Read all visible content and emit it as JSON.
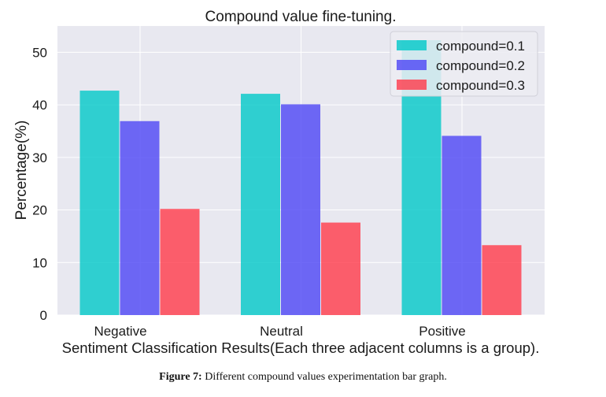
{
  "chart_data": {
    "type": "bar",
    "title": "Compound value fine-tuning.",
    "xlabel": "Sentiment Classification Results(Each three adjacent columns is a group).",
    "ylabel": "Percentage(%)",
    "categories": [
      "Negative",
      "Neutral",
      "Positive"
    ],
    "ylim": [
      0,
      55
    ],
    "yticks": [
      0,
      10,
      20,
      30,
      40,
      50
    ],
    "grid": true,
    "legend_position": "top-right",
    "series": [
      {
        "name": "compound=0.1",
        "color": "#00c8c8",
        "values": [
          42.7,
          42.1,
          52.3
        ]
      },
      {
        "name": "compound=0.2",
        "color": "#4c45f5",
        "values": [
          36.9,
          40.1,
          34.1
        ]
      },
      {
        "name": "compound=0.3",
        "color": "#ff3a4a",
        "values": [
          20.2,
          17.6,
          13.3
        ]
      }
    ]
  },
  "caption": {
    "label": "Figure 7:",
    "text": "Different compound values experimentation bar graph."
  }
}
